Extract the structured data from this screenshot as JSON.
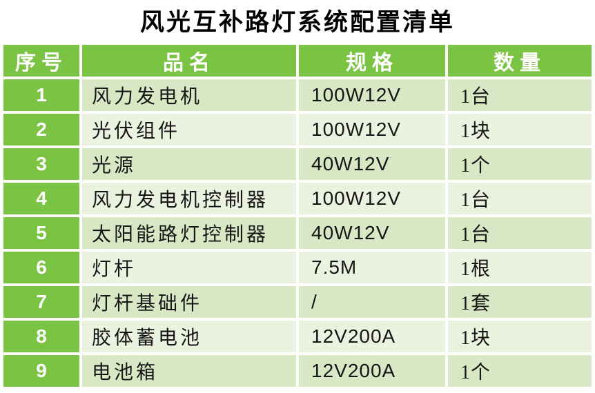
{
  "title": "风光互补路灯系统配置清单",
  "table": {
    "headers": [
      "序号",
      "品名",
      "规格",
      "数量"
    ],
    "rows": [
      {
        "no": "1",
        "name": "风力发电机",
        "spec": "100W12V",
        "qty": "1台"
      },
      {
        "no": "2",
        "name": "光伏组件",
        "spec": "100W12V",
        "qty": "1块"
      },
      {
        "no": "3",
        "name": "光源",
        "spec": "40W12V",
        "qty": "1个"
      },
      {
        "no": "4",
        "name": "风力发电机控制器",
        "spec": "100W12V",
        "qty": "1台"
      },
      {
        "no": "5",
        "name": "太阳能路灯控制器",
        "spec": "40W12V",
        "qty": "1台"
      },
      {
        "no": "6",
        "name": "灯杆",
        "spec": "7.5M",
        "qty": "1根"
      },
      {
        "no": "7",
        "name": "灯杆基础件",
        "spec": "/",
        "qty": "1套"
      },
      {
        "no": "8",
        "name": "胶体蓄电池",
        "spec": "12V200A",
        "qty": "1块"
      },
      {
        "no": "9",
        "name": "电池箱",
        "spec": "12V200A",
        "qty": "1个"
      }
    ]
  },
  "colors": {
    "header_green": "#7bc342",
    "band_dark": "#d8e7c4",
    "band_light": "#ecf2e0",
    "header_text": "#ffffff",
    "body_text": "#161616"
  }
}
